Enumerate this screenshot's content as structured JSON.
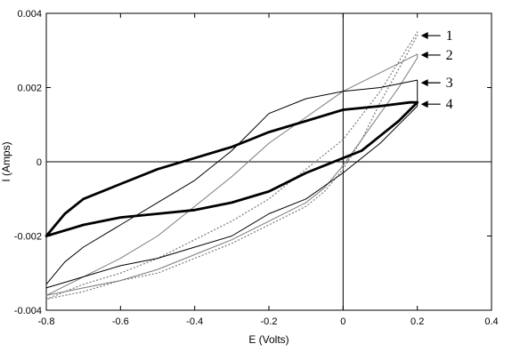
{
  "chart_data": {
    "type": "line",
    "title": "",
    "xlabel": "E (Volts)",
    "ylabel": "I (Amps)",
    "xlim": [
      -0.8,
      0.4
    ],
    "ylim": [
      -0.004,
      0.004
    ],
    "x_ticks": [
      -0.8,
      -0.6,
      -0.4,
      -0.2,
      0,
      0.2,
      0.4
    ],
    "x_tick_labels": [
      "-0.8",
      "-0.6",
      "-0.4",
      "-0.2",
      "0",
      "0.2",
      "0.4"
    ],
    "y_ticks": [
      -0.004,
      -0.002,
      0,
      0.002,
      0.004
    ],
    "y_tick_labels": [
      "-0.004",
      "-0.002",
      "0",
      "0.002",
      "0.004"
    ],
    "reference_lines": {
      "x": 0,
      "y": 0
    },
    "grid": false,
    "series": [
      {
        "name": "1",
        "color": "#7a7a7a",
        "style": "dotted",
        "x": [
          -0.8,
          -0.75,
          -0.7,
          -0.6,
          -0.5,
          -0.4,
          -0.3,
          -0.2,
          -0.1,
          0.0,
          0.1,
          0.2,
          0.2,
          0.15,
          0.1,
          0.05,
          0.0,
          -0.05,
          -0.1,
          -0.2,
          -0.3,
          -0.4,
          -0.5,
          -0.6,
          -0.7,
          -0.75,
          -0.8
        ],
        "y": [
          -0.0037,
          -0.0035,
          -0.0033,
          -0.003,
          -0.0026,
          -0.0021,
          -0.0016,
          -0.001,
          -0.0002,
          0.0006,
          0.0019,
          0.0035,
          0.0034,
          0.0025,
          0.0016,
          0.0006,
          -0.0002,
          -0.0008,
          -0.0012,
          -0.0017,
          -0.0022,
          -0.0026,
          -0.003,
          -0.0032,
          -0.0035,
          -0.0036,
          -0.0037
        ]
      },
      {
        "name": "2",
        "color": "#7a7a7a",
        "style": "solid",
        "x": [
          -0.8,
          -0.7,
          -0.6,
          -0.5,
          -0.4,
          -0.3,
          -0.2,
          -0.1,
          0.0,
          0.1,
          0.2,
          0.2,
          0.15,
          0.1,
          0.05,
          0.0,
          -0.05,
          -0.1,
          -0.2,
          -0.3,
          -0.4,
          -0.5,
          -0.6,
          -0.7,
          -0.75,
          -0.8
        ],
        "y": [
          -0.0036,
          -0.0031,
          -0.0026,
          -0.002,
          -0.0012,
          -0.0004,
          0.0005,
          0.0012,
          0.0019,
          0.0024,
          0.0029,
          0.0028,
          0.002,
          0.0013,
          0.0006,
          -0.0001,
          -0.0007,
          -0.0011,
          -0.0016,
          -0.0021,
          -0.0025,
          -0.0029,
          -0.0032,
          -0.0034,
          -0.0035,
          -0.0036
        ]
      },
      {
        "name": "3",
        "color": "#000000",
        "style": "solid",
        "x": [
          -0.8,
          -0.75,
          -0.7,
          -0.6,
          -0.5,
          -0.4,
          -0.3,
          -0.25,
          -0.2,
          -0.1,
          0.0,
          0.1,
          0.2,
          0.2,
          0.15,
          0.1,
          0.0,
          -0.1,
          -0.2,
          -0.3,
          -0.4,
          -0.5,
          -0.6,
          -0.7,
          -0.8
        ],
        "y": [
          -0.0033,
          -0.0027,
          -0.0023,
          -0.0017,
          -0.0011,
          -0.0005,
          0.0003,
          0.0008,
          0.0013,
          0.0017,
          0.0019,
          0.002,
          0.0022,
          0.0015,
          0.001,
          0.0005,
          -0.0003,
          -0.001,
          -0.0014,
          -0.002,
          -0.0023,
          -0.0026,
          -0.0028,
          -0.0031,
          -0.0034
        ]
      },
      {
        "name": "4",
        "color": "#000000",
        "style": "thick",
        "x": [
          -0.8,
          -0.75,
          -0.7,
          -0.6,
          -0.5,
          -0.4,
          -0.3,
          -0.25,
          -0.2,
          -0.1,
          0.0,
          0.1,
          0.18,
          0.2,
          0.15,
          0.1,
          0.05,
          0.0,
          -0.05,
          -0.1,
          -0.2,
          -0.3,
          -0.4,
          -0.5,
          -0.6,
          -0.7,
          -0.8
        ],
        "y": [
          -0.002,
          -0.0014,
          -0.001,
          -0.0006,
          -0.0002,
          0.0001,
          0.0004,
          0.0006,
          0.0008,
          0.0011,
          0.0014,
          0.0015,
          0.0016,
          0.0016,
          0.0011,
          0.0007,
          0.0003,
          0.0001,
          -0.0001,
          -0.0003,
          -0.0008,
          -0.0011,
          -0.0013,
          -0.0014,
          -0.0015,
          -0.0017,
          -0.002
        ]
      }
    ],
    "curve_labels": [
      {
        "text": "1",
        "x": 0.2,
        "y": 0.0034
      },
      {
        "text": "2",
        "x": 0.2,
        "y": 0.0029
      },
      {
        "text": "3",
        "x": 0.2,
        "y": 0.0022
      },
      {
        "text": "4",
        "x": 0.2,
        "y": 0.0016
      }
    ]
  }
}
